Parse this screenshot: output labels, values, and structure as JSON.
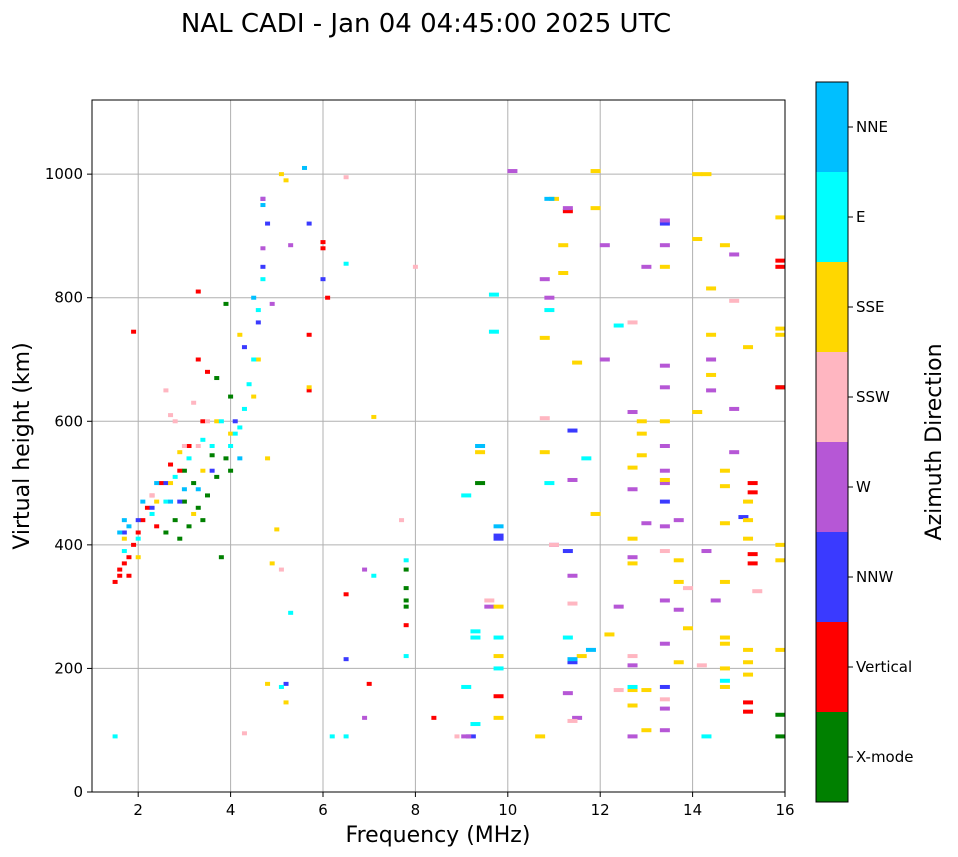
{
  "chart_data": {
    "type": "scatter",
    "title": "NAL CADI - Jan 04 04:45:00 2025 UTC",
    "xlabel": "Frequency (MHz)",
    "ylabel": "Virtual height (km)",
    "xlim": [
      1,
      16
    ],
    "ylim": [
      0,
      1120
    ],
    "xticks": [
      2,
      4,
      6,
      8,
      10,
      12,
      14,
      16
    ],
    "yticks": [
      0,
      200,
      400,
      600,
      800,
      1000
    ],
    "grid": true,
    "colorbar": {
      "label": "Azimuth Direction",
      "entries": [
        {
          "name": "X-mode",
          "color": "#008000"
        },
        {
          "name": "Vertical",
          "color": "#ff0000"
        },
        {
          "name": "NNW",
          "color": "#3a3aff"
        },
        {
          "name": "W",
          "color": "#b657d6"
        },
        {
          "name": "SSW",
          "color": "#ffb6c1"
        },
        {
          "name": "SSE",
          "color": "#ffd700"
        },
        {
          "name": "E",
          "color": "#00ffff"
        },
        {
          "name": "NNE",
          "color": "#00bfff"
        }
      ]
    },
    "series": [
      {
        "name": "X-mode",
        "points": [
          [
            2.6,
            420
          ],
          [
            2.8,
            440
          ],
          [
            3.0,
            470
          ],
          [
            3.1,
            430
          ],
          [
            3.3,
            460
          ],
          [
            3.5,
            480
          ],
          [
            3.7,
            510
          ],
          [
            3.9,
            540
          ],
          [
            4.0,
            520
          ],
          [
            3.2,
            500
          ],
          [
            3.4,
            440
          ],
          [
            3.6,
            545
          ],
          [
            3.8,
            380
          ],
          [
            3.0,
            520
          ],
          [
            2.9,
            410
          ],
          [
            3.7,
            670
          ],
          [
            4.0,
            640
          ],
          [
            3.9,
            790
          ],
          [
            7.8,
            330
          ],
          [
            7.8,
            310
          ],
          [
            7.8,
            300
          ],
          [
            7.8,
            360
          ],
          [
            9.4,
            500
          ],
          [
            15.9,
            125
          ],
          [
            15.9,
            90
          ],
          [
            15.9,
            655
          ]
        ]
      },
      {
        "name": "Vertical",
        "points": [
          [
            1.6,
            360
          ],
          [
            1.7,
            370
          ],
          [
            1.8,
            380
          ],
          [
            1.9,
            400
          ],
          [
            2.0,
            420
          ],
          [
            2.1,
            440
          ],
          [
            2.2,
            460
          ],
          [
            2.3,
            480
          ],
          [
            2.5,
            500
          ],
          [
            2.7,
            530
          ],
          [
            2.9,
            520
          ],
          [
            1.5,
            340
          ],
          [
            1.6,
            350
          ],
          [
            1.8,
            350
          ],
          [
            2.4,
            430
          ],
          [
            3.1,
            560
          ],
          [
            3.4,
            600
          ],
          [
            3.3,
            700
          ],
          [
            3.5,
            680
          ],
          [
            3.3,
            810
          ],
          [
            1.9,
            745
          ],
          [
            6.0,
            890
          ],
          [
            6.0,
            880
          ],
          [
            6.1,
            800
          ],
          [
            5.7,
            740
          ],
          [
            5.7,
            650
          ],
          [
            6.5,
            320
          ],
          [
            7.0,
            175
          ],
          [
            8.4,
            120
          ],
          [
            9.8,
            155
          ],
          [
            11.3,
            940
          ],
          [
            15.2,
            145
          ],
          [
            15.2,
            130
          ],
          [
            15.3,
            485
          ],
          [
            15.3,
            500
          ],
          [
            15.3,
            385
          ],
          [
            15.3,
            370
          ],
          [
            15.9,
            850
          ],
          [
            15.9,
            860
          ],
          [
            15.9,
            655
          ],
          [
            7.8,
            270
          ]
        ]
      },
      {
        "name": "NNW",
        "points": [
          [
            1.7,
            420
          ],
          [
            2.0,
            440
          ],
          [
            2.3,
            460
          ],
          [
            2.6,
            500
          ],
          [
            2.9,
            470
          ],
          [
            3.6,
            520
          ],
          [
            4.1,
            600
          ],
          [
            4.3,
            720
          ],
          [
            4.6,
            760
          ],
          [
            4.7,
            850
          ],
          [
            4.8,
            920
          ],
          [
            4.7,
            960
          ],
          [
            5.2,
            175
          ],
          [
            5.7,
            920
          ],
          [
            6.0,
            830
          ],
          [
            6.5,
            215
          ],
          [
            9.2,
            90
          ],
          [
            9.8,
            410
          ],
          [
            9.8,
            415
          ],
          [
            11.4,
            585
          ],
          [
            11.3,
            390
          ],
          [
            11.4,
            210
          ],
          [
            13.4,
            920
          ],
          [
            13.4,
            470
          ],
          [
            13.4,
            170
          ],
          [
            15.1,
            445
          ]
        ]
      },
      {
        "name": "W",
        "points": [
          [
            4.7,
            880
          ],
          [
            4.9,
            790
          ],
          [
            4.7,
            960
          ],
          [
            5.3,
            885
          ],
          [
            6.9,
            360
          ],
          [
            6.9,
            120
          ],
          [
            9.1,
            90
          ],
          [
            9.6,
            300
          ],
          [
            10.1,
            1005
          ],
          [
            10.8,
            830
          ],
          [
            10.9,
            800
          ],
          [
            11.0,
            400
          ],
          [
            11.3,
            945
          ],
          [
            11.4,
            505
          ],
          [
            11.4,
            350
          ],
          [
            11.5,
            120
          ],
          [
            11.3,
            160
          ],
          [
            12.1,
            700
          ],
          [
            12.1,
            885
          ],
          [
            12.4,
            300
          ],
          [
            12.7,
            615
          ],
          [
            12.7,
            490
          ],
          [
            12.7,
            380
          ],
          [
            12.7,
            205
          ],
          [
            12.7,
            90
          ],
          [
            13.0,
            850
          ],
          [
            13.0,
            435
          ],
          [
            13.4,
            925
          ],
          [
            13.4,
            885
          ],
          [
            13.4,
            690
          ],
          [
            13.4,
            655
          ],
          [
            13.4,
            560
          ],
          [
            13.4,
            520
          ],
          [
            13.4,
            500
          ],
          [
            13.4,
            430
          ],
          [
            13.4,
            310
          ],
          [
            13.4,
            240
          ],
          [
            13.4,
            135
          ],
          [
            13.4,
            100
          ],
          [
            13.7,
            440
          ],
          [
            13.7,
            295
          ],
          [
            14.4,
            700
          ],
          [
            14.4,
            650
          ],
          [
            14.3,
            390
          ],
          [
            14.5,
            310
          ],
          [
            14.9,
            550
          ],
          [
            14.9,
            620
          ],
          [
            14.9,
            870
          ]
        ]
      },
      {
        "name": "SSW",
        "points": [
          [
            2.3,
            480
          ],
          [
            2.6,
            650
          ],
          [
            2.7,
            610
          ],
          [
            2.8,
            600
          ],
          [
            3.0,
            560
          ],
          [
            3.3,
            560
          ],
          [
            3.2,
            630
          ],
          [
            3.5,
            600
          ],
          [
            4.3,
            95
          ],
          [
            5.1,
            360
          ],
          [
            6.5,
            995
          ],
          [
            7.7,
            440
          ],
          [
            8.0,
            850
          ],
          [
            8.9,
            90
          ],
          [
            9.6,
            310
          ],
          [
            10.8,
            605
          ],
          [
            11.0,
            400
          ],
          [
            11.4,
            305
          ],
          [
            11.4,
            115
          ],
          [
            12.4,
            165
          ],
          [
            12.7,
            760
          ],
          [
            12.7,
            220
          ],
          [
            13.4,
            390
          ],
          [
            13.4,
            150
          ],
          [
            13.9,
            330
          ],
          [
            14.2,
            205
          ],
          [
            14.9,
            795
          ],
          [
            15.4,
            325
          ]
        ]
      },
      {
        "name": "SSE",
        "points": [
          [
            1.7,
            410
          ],
          [
            2.0,
            380
          ],
          [
            2.4,
            470
          ],
          [
            2.7,
            500
          ],
          [
            2.9,
            550
          ],
          [
            3.2,
            450
          ],
          [
            3.4,
            520
          ],
          [
            3.7,
            600
          ],
          [
            4.0,
            580
          ],
          [
            4.2,
            740
          ],
          [
            4.5,
            640
          ],
          [
            4.6,
            700
          ],
          [
            4.8,
            540
          ],
          [
            5.1,
            1000
          ],
          [
            5.2,
            990
          ],
          [
            5.0,
            425
          ],
          [
            4.8,
            175
          ],
          [
            4.9,
            370
          ],
          [
            5.2,
            145
          ],
          [
            5.7,
            655
          ],
          [
            7.1,
            607
          ],
          [
            9.4,
            550
          ],
          [
            9.8,
            120
          ],
          [
            9.8,
            300
          ],
          [
            9.8,
            220
          ],
          [
            10.7,
            90
          ],
          [
            10.8,
            550
          ],
          [
            10.8,
            735
          ],
          [
            11.0,
            960
          ],
          [
            11.2,
            840
          ],
          [
            11.2,
            885
          ],
          [
            11.5,
            695
          ],
          [
            11.6,
            220
          ],
          [
            11.9,
            1005
          ],
          [
            11.9,
            945
          ],
          [
            11.9,
            450
          ],
          [
            12.2,
            255
          ],
          [
            12.7,
            525
          ],
          [
            12.7,
            410
          ],
          [
            12.7,
            370
          ],
          [
            12.7,
            165
          ],
          [
            12.7,
            140
          ],
          [
            12.9,
            600
          ],
          [
            12.9,
            580
          ],
          [
            12.9,
            545
          ],
          [
            13.0,
            100
          ],
          [
            13.0,
            165
          ],
          [
            13.4,
            850
          ],
          [
            13.4,
            600
          ],
          [
            13.4,
            505
          ],
          [
            13.7,
            375
          ],
          [
            13.7,
            340
          ],
          [
            13.7,
            210
          ],
          [
            13.9,
            265
          ],
          [
            14.1,
            1000
          ],
          [
            14.3,
            1000
          ],
          [
            14.1,
            615
          ],
          [
            14.1,
            895
          ],
          [
            14.4,
            815
          ],
          [
            14.4,
            740
          ],
          [
            14.4,
            675
          ],
          [
            14.7,
            885
          ],
          [
            14.7,
            520
          ],
          [
            14.7,
            495
          ],
          [
            14.7,
            435
          ],
          [
            14.7,
            340
          ],
          [
            14.7,
            250
          ],
          [
            14.7,
            240
          ],
          [
            14.7,
            200
          ],
          [
            14.7,
            170
          ],
          [
            15.2,
            720
          ],
          [
            15.2,
            470
          ],
          [
            15.2,
            440
          ],
          [
            15.2,
            410
          ],
          [
            15.2,
            230
          ],
          [
            15.2,
            210
          ],
          [
            15.2,
            190
          ],
          [
            15.9,
            930
          ],
          [
            15.9,
            750
          ],
          [
            15.9,
            740
          ],
          [
            15.9,
            400
          ],
          [
            15.9,
            375
          ],
          [
            15.9,
            230
          ]
        ]
      },
      {
        "name": "E",
        "points": [
          [
            1.5,
            90
          ],
          [
            1.7,
            390
          ],
          [
            2.0,
            410
          ],
          [
            2.3,
            450
          ],
          [
            2.6,
            470
          ],
          [
            2.8,
            510
          ],
          [
            3.1,
            540
          ],
          [
            3.4,
            570
          ],
          [
            3.6,
            560
          ],
          [
            3.8,
            600
          ],
          [
            4.0,
            560
          ],
          [
            4.1,
            580
          ],
          [
            4.2,
            590
          ],
          [
            4.3,
            620
          ],
          [
            4.4,
            660
          ],
          [
            4.5,
            700
          ],
          [
            4.6,
            780
          ],
          [
            4.7,
            830
          ],
          [
            5.1,
            170
          ],
          [
            5.3,
            290
          ],
          [
            6.5,
            855
          ],
          [
            6.5,
            90
          ],
          [
            6.2,
            90
          ],
          [
            7.1,
            350
          ],
          [
            7.8,
            375
          ],
          [
            7.8,
            220
          ],
          [
            9.1,
            170
          ],
          [
            9.1,
            480
          ],
          [
            9.3,
            260
          ],
          [
            9.3,
            250
          ],
          [
            9.3,
            110
          ],
          [
            9.8,
            250
          ],
          [
            9.8,
            200
          ],
          [
            9.7,
            745
          ],
          [
            9.7,
            805
          ],
          [
            10.9,
            780
          ],
          [
            10.9,
            500
          ],
          [
            11.3,
            250
          ],
          [
            11.7,
            540
          ],
          [
            12.4,
            755
          ],
          [
            12.7,
            170
          ],
          [
            14.3,
            90
          ],
          [
            14.7,
            180
          ]
        ]
      },
      {
        "name": "NNE",
        "points": [
          [
            1.6,
            420
          ],
          [
            1.7,
            440
          ],
          [
            1.8,
            430
          ],
          [
            2.1,
            470
          ],
          [
            2.4,
            500
          ],
          [
            2.7,
            470
          ],
          [
            3.0,
            490
          ],
          [
            3.3,
            490
          ],
          [
            4.2,
            540
          ],
          [
            4.5,
            800
          ],
          [
            4.7,
            950
          ],
          [
            5.6,
            1010
          ],
          [
            9.4,
            560
          ],
          [
            9.8,
            430
          ],
          [
            10.9,
            960
          ],
          [
            11.4,
            215
          ],
          [
            11.8,
            230
          ]
        ]
      }
    ]
  }
}
